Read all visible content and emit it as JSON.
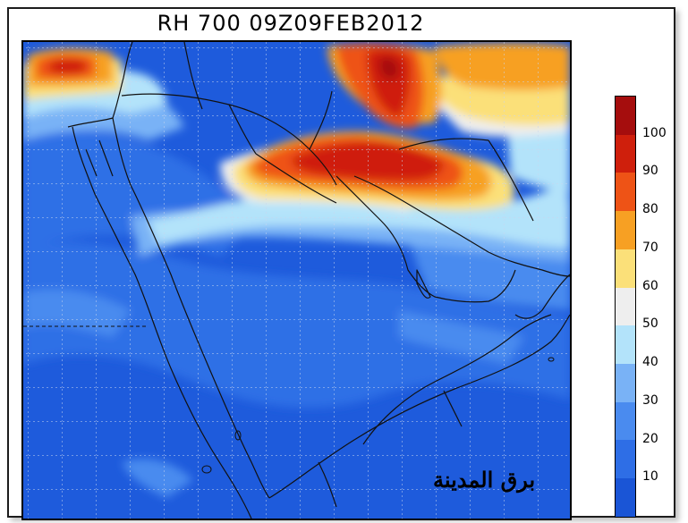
{
  "title": "RH 700  09Z09FEB2012",
  "watermark": "برق المدينة",
  "legend": {
    "labels": [
      "10",
      "20",
      "30",
      "40",
      "50",
      "60",
      "70",
      "80",
      "90",
      "100"
    ],
    "colors": [
      "#1a55d6",
      "#2e6ee6",
      "#4a8bef",
      "#79b2f6",
      "#b3e3fa",
      "#eeeeee",
      "#fbe079",
      "#f7a023",
      "#ee5316",
      "#cf1f0c",
      "#a50d0d"
    ]
  },
  "map": {
    "variable": "Relative humidity at 700 hPa",
    "region": "Arabian Peninsula"
  }
}
